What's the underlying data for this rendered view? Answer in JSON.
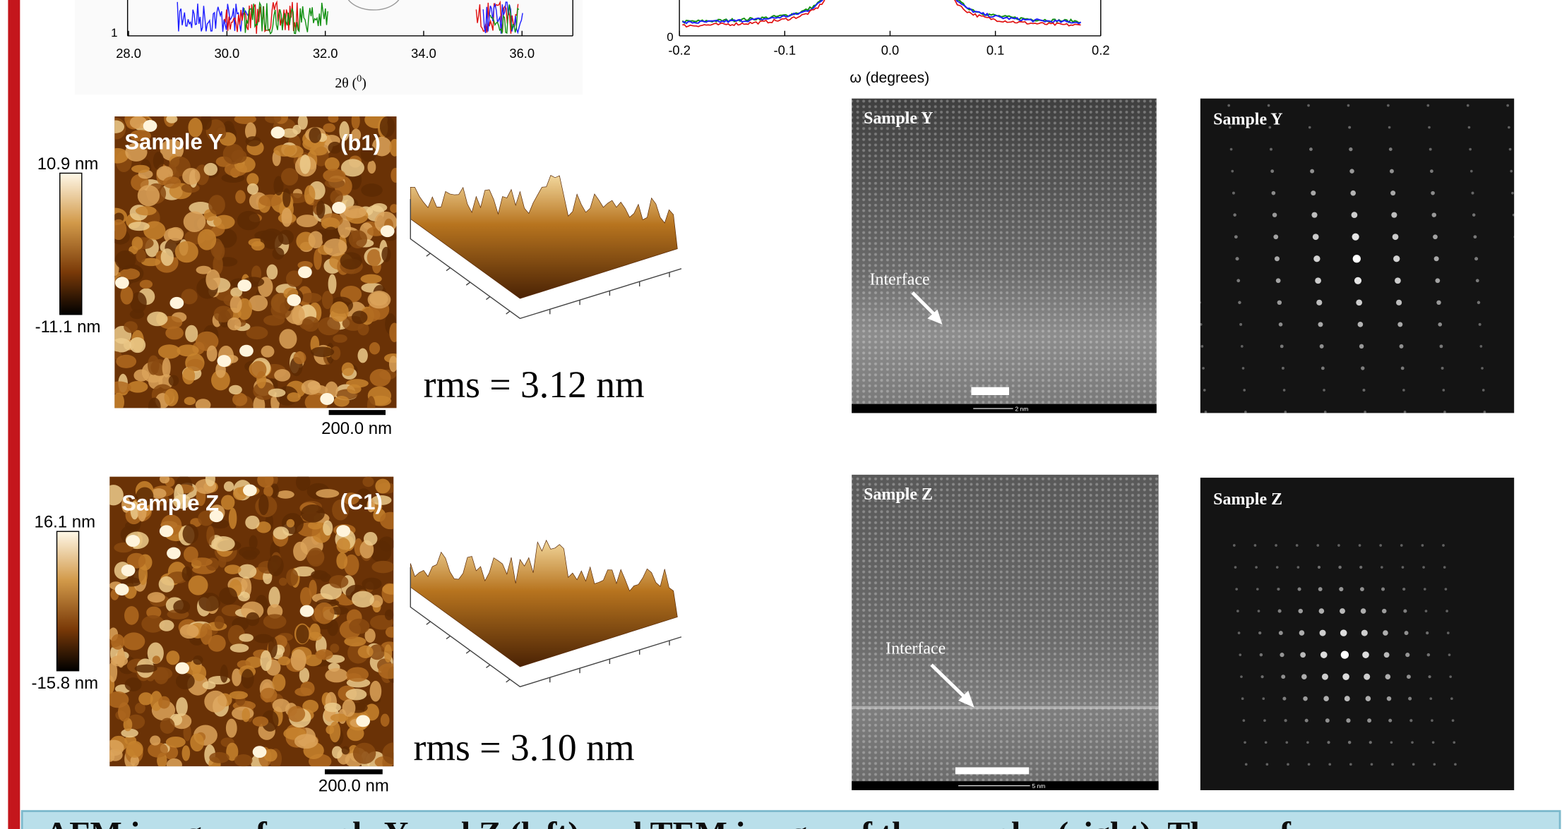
{
  "xrd_plot": {
    "yticks": [
      "1"
    ],
    "xticks": [
      "28.0",
      "30.0",
      "32.0",
      "34.0",
      "36.0"
    ],
    "x_label": "2θ (",
    "x_label_unit": "0",
    "x_label_close": ")"
  },
  "rocking_curve": {
    "yticks": [
      "0"
    ],
    "xticks": [
      "-0.2",
      "-0.1",
      "0.0",
      "0.1",
      "0.2"
    ],
    "x_label": "ω (degrees)"
  },
  "afm": [
    {
      "sample": "Sample Y",
      "panel": "(b1)",
      "colorbar_max": "10.9 nm",
      "colorbar_min": "-11.1 nm",
      "scale_bar": "200.0 nm",
      "rms": "rms = 3.12 nm"
    },
    {
      "sample": "Sample Z",
      "panel": "(C1)",
      "colorbar_max": "16.1 nm",
      "colorbar_min": "-15.8 nm",
      "scale_bar": "200.0 nm",
      "rms": "rms = 3.10 nm"
    }
  ],
  "tem": [
    {
      "sample": "Sample Y",
      "annotation": "Interface",
      "scale_bar": "2 nm"
    },
    {
      "sample": "Sample Z",
      "annotation": "Interface",
      "scale_bar": "5 nm"
    }
  ],
  "diffraction": [
    {
      "sample": "Sample Y"
    },
    {
      "sample": "Sample Z"
    }
  ],
  "caption": "AFM images of sample Y and Z (left) and TEM images of the samples (right). The surface"
}
